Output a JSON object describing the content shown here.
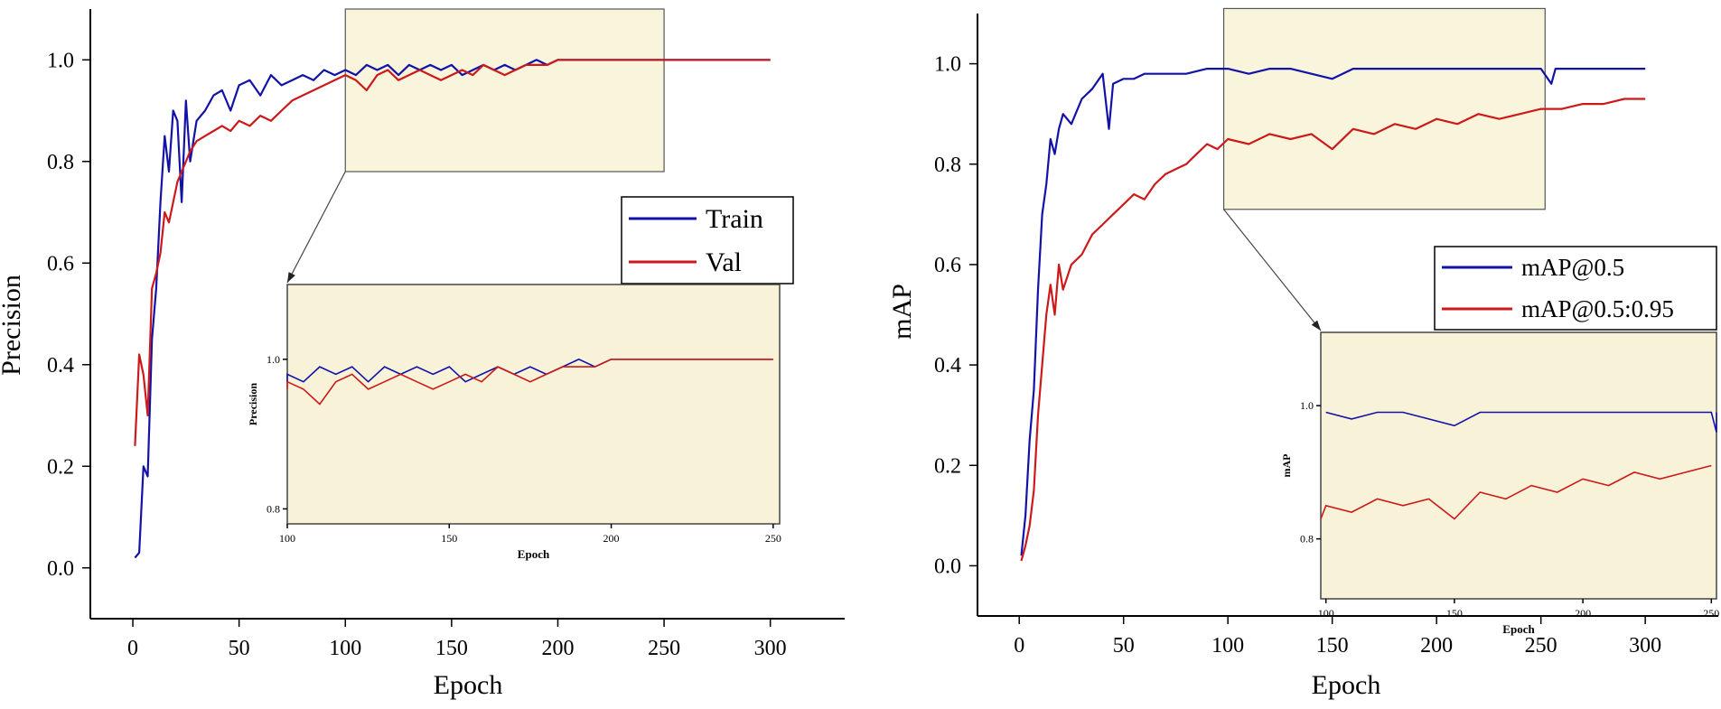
{
  "colors": {
    "train": "#1212a8",
    "val": "#cc1a1a",
    "inset_bg": "#f8f3d8"
  },
  "chart_data": [
    {
      "type": "line",
      "xlabel": "Epoch",
      "ylabel": "Precision",
      "xlim": [
        -20,
        335
      ],
      "ylim": [
        -0.1,
        1.1
      ],
      "xticks": [
        "0",
        "50",
        "100",
        "150",
        "200",
        "250",
        "300"
      ],
      "yticks": [
        "0.0",
        "0.2",
        "0.4",
        "0.6",
        "0.8",
        "1.0"
      ],
      "legend": [
        "Train",
        "Val"
      ],
      "zoom_region": {
        "x": [
          100,
          250
        ],
        "y": [
          0.78,
          1.1
        ]
      },
      "series": [
        {
          "name": "Train",
          "x": [
            1,
            3,
            5,
            7,
            9,
            11,
            13,
            15,
            17,
            19,
            21,
            23,
            25,
            27,
            30,
            34,
            38,
            42,
            46,
            50,
            55,
            60,
            65,
            70,
            75,
            80,
            85,
            90,
            95,
            100,
            105,
            110,
            115,
            120,
            125,
            130,
            135,
            140,
            145,
            150,
            155,
            160,
            165,
            170,
            175,
            180,
            185,
            190,
            195,
            200,
            205,
            210,
            220,
            230,
            240,
            250,
            260,
            270,
            280,
            290,
            300
          ],
          "values": [
            0.02,
            0.03,
            0.2,
            0.18,
            0.45,
            0.55,
            0.72,
            0.85,
            0.78,
            0.9,
            0.88,
            0.72,
            0.92,
            0.8,
            0.88,
            0.9,
            0.93,
            0.94,
            0.9,
            0.95,
            0.96,
            0.93,
            0.97,
            0.95,
            0.96,
            0.97,
            0.96,
            0.98,
            0.97,
            0.98,
            0.97,
            0.99,
            0.98,
            0.99,
            0.97,
            0.99,
            0.98,
            0.99,
            0.98,
            0.99,
            0.97,
            0.98,
            0.99,
            0.98,
            0.99,
            0.98,
            0.99,
            1.0,
            0.99,
            1.0,
            1.0,
            1.0,
            1.0,
            1.0,
            1.0,
            1.0,
            1.0,
            1.0,
            1.0,
            1.0,
            1.0
          ]
        },
        {
          "name": "Val",
          "x": [
            1,
            3,
            5,
            7,
            9,
            11,
            13,
            15,
            17,
            19,
            21,
            23,
            25,
            27,
            30,
            34,
            38,
            42,
            46,
            50,
            55,
            60,
            65,
            70,
            75,
            80,
            85,
            90,
            95,
            100,
            105,
            110,
            115,
            120,
            125,
            130,
            135,
            140,
            145,
            150,
            155,
            160,
            165,
            170,
            175,
            180,
            185,
            190,
            195,
            200,
            205,
            210,
            220,
            230,
            240,
            250,
            260,
            270,
            280,
            290,
            300
          ],
          "values": [
            0.24,
            0.42,
            0.38,
            0.3,
            0.55,
            0.58,
            0.62,
            0.7,
            0.68,
            0.72,
            0.76,
            0.78,
            0.8,
            0.82,
            0.84,
            0.85,
            0.86,
            0.87,
            0.86,
            0.88,
            0.87,
            0.89,
            0.88,
            0.9,
            0.92,
            0.93,
            0.94,
            0.95,
            0.96,
            0.97,
            0.96,
            0.94,
            0.97,
            0.98,
            0.96,
            0.97,
            0.98,
            0.97,
            0.96,
            0.97,
            0.98,
            0.97,
            0.99,
            0.98,
            0.97,
            0.98,
            0.99,
            0.99,
            0.99,
            1.0,
            1.0,
            1.0,
            1.0,
            1.0,
            1.0,
            1.0,
            1.0,
            1.0,
            1.0,
            1.0,
            1.0
          ]
        }
      ],
      "inset": {
        "xlabel": "Epoch",
        "ylabel": "Precision",
        "xlim": [
          100,
          252
        ],
        "ylim": [
          0.78,
          1.1
        ],
        "xticks": [
          "100",
          "150",
          "200",
          "250"
        ],
        "yticks": [
          "0.8",
          "1.0"
        ]
      }
    },
    {
      "type": "line",
      "xlabel": "Epoch",
      "ylabel": "mAP",
      "xlim": [
        -20,
        335
      ],
      "ylim": [
        -0.1,
        1.1
      ],
      "xticks": [
        "0",
        "50",
        "100",
        "150",
        "200",
        "250",
        "300"
      ],
      "yticks": [
        "0.0",
        "0.2",
        "0.4",
        "0.6",
        "0.8",
        "1.0"
      ],
      "legend": [
        "mAP@0.5",
        "mAP@0.5:0.95"
      ],
      "zoom_region": {
        "x": [
          98,
          252
        ],
        "y": [
          0.71,
          1.11
        ]
      },
      "series": [
        {
          "name": "mAP@0.5",
          "x": [
            1,
            3,
            5,
            7,
            9,
            11,
            13,
            15,
            17,
            19,
            21,
            25,
            30,
            35,
            40,
            43,
            45,
            50,
            55,
            60,
            70,
            80,
            90,
            100,
            110,
            120,
            130,
            140,
            150,
            160,
            170,
            180,
            190,
            200,
            210,
            220,
            230,
            240,
            250,
            255,
            257,
            260,
            270,
            280,
            290,
            300
          ],
          "values": [
            0.02,
            0.1,
            0.25,
            0.35,
            0.55,
            0.7,
            0.76,
            0.85,
            0.82,
            0.87,
            0.9,
            0.88,
            0.93,
            0.95,
            0.98,
            0.87,
            0.96,
            0.97,
            0.97,
            0.98,
            0.98,
            0.98,
            0.99,
            0.99,
            0.98,
            0.99,
            0.99,
            0.98,
            0.97,
            0.99,
            0.99,
            0.99,
            0.99,
            0.99,
            0.99,
            0.99,
            0.99,
            0.99,
            0.99,
            0.96,
            0.99,
            0.99,
            0.99,
            0.99,
            0.99,
            0.99
          ]
        },
        {
          "name": "mAP@0.5:0.95",
          "x": [
            1,
            3,
            5,
            7,
            9,
            11,
            13,
            15,
            17,
            19,
            21,
            25,
            30,
            35,
            40,
            45,
            50,
            55,
            60,
            65,
            70,
            75,
            80,
            85,
            90,
            95,
            100,
            110,
            120,
            130,
            140,
            150,
            160,
            170,
            180,
            190,
            200,
            210,
            220,
            230,
            240,
            250,
            260,
            270,
            280,
            290,
            300
          ],
          "values": [
            0.01,
            0.04,
            0.08,
            0.15,
            0.3,
            0.4,
            0.5,
            0.56,
            0.5,
            0.6,
            0.55,
            0.6,
            0.62,
            0.66,
            0.68,
            0.7,
            0.72,
            0.74,
            0.73,
            0.76,
            0.78,
            0.79,
            0.8,
            0.82,
            0.84,
            0.83,
            0.85,
            0.84,
            0.86,
            0.85,
            0.86,
            0.83,
            0.87,
            0.86,
            0.88,
            0.87,
            0.89,
            0.88,
            0.9,
            0.89,
            0.9,
            0.91,
            0.91,
            0.92,
            0.92,
            0.93,
            0.93
          ]
        }
      ],
      "inset": {
        "xlabel": "Epoch",
        "ylabel": "mAP",
        "xlim": [
          98,
          252
        ],
        "ylim": [
          0.71,
          1.11
        ],
        "xticks": [
          "100",
          "150",
          "200",
          "250"
        ],
        "yticks": [
          "0.8",
          "1.0"
        ]
      }
    }
  ]
}
